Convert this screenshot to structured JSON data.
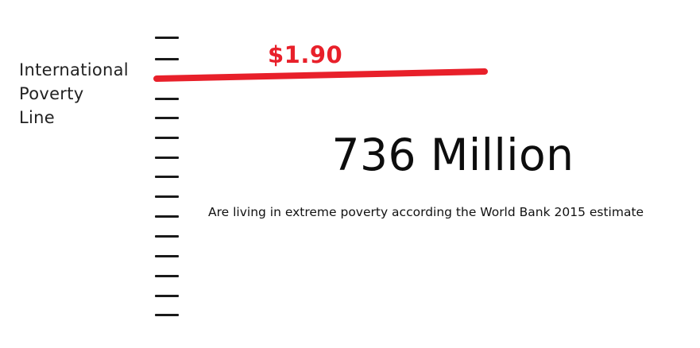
{
  "label": {
    "lines": [
      "International",
      "Poverty",
      "Line"
    ]
  },
  "threshold": {
    "value_text": "$1.90",
    "color": "#e8202a"
  },
  "headline": {
    "text": "736 Million"
  },
  "caption": {
    "text": "Are living in extreme poverty according the World Bank 2015 estimate"
  },
  "colors": {
    "ticks": "#1a1a1a",
    "text": "#111111"
  }
}
